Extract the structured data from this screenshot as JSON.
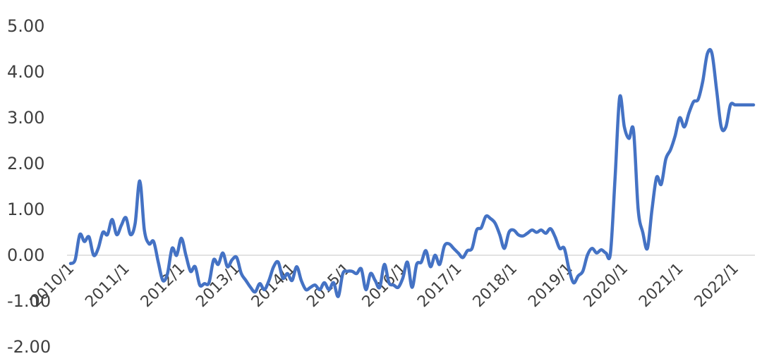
{
  "chart_data": {
    "type": "line",
    "title": "",
    "xlabel": "",
    "ylabel": "",
    "ylim": [
      -2,
      5
    ],
    "xlim": [
      "2010-01",
      "2022-05"
    ],
    "grid": false,
    "legend": "none",
    "y_tick_labels": [
      "5.00",
      "4.00",
      "3.00",
      "2.00",
      "1.00",
      "0.00",
      "-1.00",
      "-2.00"
    ],
    "x_tick_labels": [
      "2010/1",
      "2011/1",
      "2012/1",
      "2013/1",
      "2014/1",
      "2015/1",
      "2016/1",
      "2017/1",
      "2018/1",
      "2019/1",
      "2020/1",
      "2021/1",
      "2022/1"
    ],
    "colors": {
      "line": "#4472C4",
      "axis": "#d9d9d9"
    },
    "series": [
      {
        "x": [
          "2010-01",
          "2010-02",
          "2010-03",
          "2010-04",
          "2010-05",
          "2010-06",
          "2010-07",
          "2010-08",
          "2010-09",
          "2010-10",
          "2010-11",
          "2010-12",
          "2011-01",
          "2011-02",
          "2011-03",
          "2011-04",
          "2011-05",
          "2011-06",
          "2011-07",
          "2011-08",
          "2011-09",
          "2011-10",
          "2011-11",
          "2011-12",
          "2012-01",
          "2012-02",
          "2012-03",
          "2012-04",
          "2012-05",
          "2012-06",
          "2012-07",
          "2012-08",
          "2012-09",
          "2012-10",
          "2012-11",
          "2012-12",
          "2013-01",
          "2013-02",
          "2013-03",
          "2013-04",
          "2013-05",
          "2013-06",
          "2013-07",
          "2013-08",
          "2013-09",
          "2013-10",
          "2013-11",
          "2013-12",
          "2014-01",
          "2014-02",
          "2014-03",
          "2014-04",
          "2014-05",
          "2014-06",
          "2014-07",
          "2014-08",
          "2014-09",
          "2014-10",
          "2014-11",
          "2014-12",
          "2015-01",
          "2015-02",
          "2015-03",
          "2015-04",
          "2015-05",
          "2015-06",
          "2015-07",
          "2015-08",
          "2015-09",
          "2015-10",
          "2015-11",
          "2015-12",
          "2016-01",
          "2016-02",
          "2016-03",
          "2016-04",
          "2016-05",
          "2016-06",
          "2016-07",
          "2016-08",
          "2016-09",
          "2016-10",
          "2016-11",
          "2016-12",
          "2017-01",
          "2017-02",
          "2017-03",
          "2017-04",
          "2017-05",
          "2017-06",
          "2017-07",
          "2017-08",
          "2017-09",
          "2017-10",
          "2017-11",
          "2017-12",
          "2018-01",
          "2018-02",
          "2018-03",
          "2018-04",
          "2018-05",
          "2018-06",
          "2018-07",
          "2018-08",
          "2018-09",
          "2018-10",
          "2018-11",
          "2018-12",
          "2019-01",
          "2019-02",
          "2019-03",
          "2019-04",
          "2019-05",
          "2019-06",
          "2019-07",
          "2019-08",
          "2019-09",
          "2019-10",
          "2019-11",
          "2019-12",
          "2020-01",
          "2020-02",
          "2020-03",
          "2020-04",
          "2020-05",
          "2020-06",
          "2020-07",
          "2020-08",
          "2020-09",
          "2020-10",
          "2020-11",
          "2020-12",
          "2021-01",
          "2021-02",
          "2021-03",
          "2021-04",
          "2021-05",
          "2021-06",
          "2021-07",
          "2021-08",
          "2021-09",
          "2021-10",
          "2021-11",
          "2021-12",
          "2022-01",
          "2022-02",
          "2022-03",
          "2022-04",
          "2022-05"
        ],
        "values": [
          -0.18,
          -0.1,
          0.45,
          0.3,
          0.4,
          0.0,
          0.15,
          0.5,
          0.45,
          0.78,
          0.45,
          0.65,
          0.82,
          0.45,
          0.7,
          1.62,
          0.55,
          0.25,
          0.3,
          -0.15,
          -0.55,
          -0.4,
          0.15,
          0.0,
          0.37,
          0.0,
          -0.35,
          -0.25,
          -0.65,
          -0.62,
          -0.6,
          -0.1,
          -0.2,
          0.05,
          -0.25,
          -0.1,
          -0.05,
          -0.4,
          -0.55,
          -0.7,
          -0.8,
          -0.62,
          -0.75,
          -0.55,
          -0.25,
          -0.15,
          -0.5,
          -0.4,
          -0.55,
          -0.25,
          -0.55,
          -0.75,
          -0.7,
          -0.65,
          -0.75,
          -0.6,
          -0.75,
          -0.6,
          -0.9,
          -0.4,
          -0.35,
          -0.35,
          -0.4,
          -0.3,
          -0.75,
          -0.4,
          -0.55,
          -0.7,
          -0.2,
          -0.6,
          -0.65,
          -0.7,
          -0.5,
          -0.15,
          -0.7,
          -0.2,
          -0.15,
          0.1,
          -0.25,
          0.0,
          -0.2,
          0.2,
          0.25,
          0.15,
          0.05,
          -0.05,
          0.1,
          0.15,
          0.55,
          0.6,
          0.85,
          0.8,
          0.7,
          0.45,
          0.15,
          0.5,
          0.55,
          0.45,
          0.42,
          0.48,
          0.55,
          0.5,
          0.55,
          0.48,
          0.58,
          0.4,
          0.15,
          0.15,
          -0.3,
          -0.6,
          -0.45,
          -0.35,
          0.0,
          0.15,
          0.05,
          0.12,
          0.05,
          0.05,
          1.7,
          3.45,
          2.8,
          2.55,
          2.72,
          1.0,
          0.5,
          0.15,
          1.0,
          1.7,
          1.55,
          2.1,
          2.3,
          2.6,
          3.0,
          2.8,
          3.1,
          3.35,
          3.4,
          3.8,
          4.4,
          4.4,
          3.6,
          2.8,
          2.8,
          3.28,
          3.28,
          3.28,
          3.28,
          3.28,
          3.28
        ]
      }
    ]
  }
}
